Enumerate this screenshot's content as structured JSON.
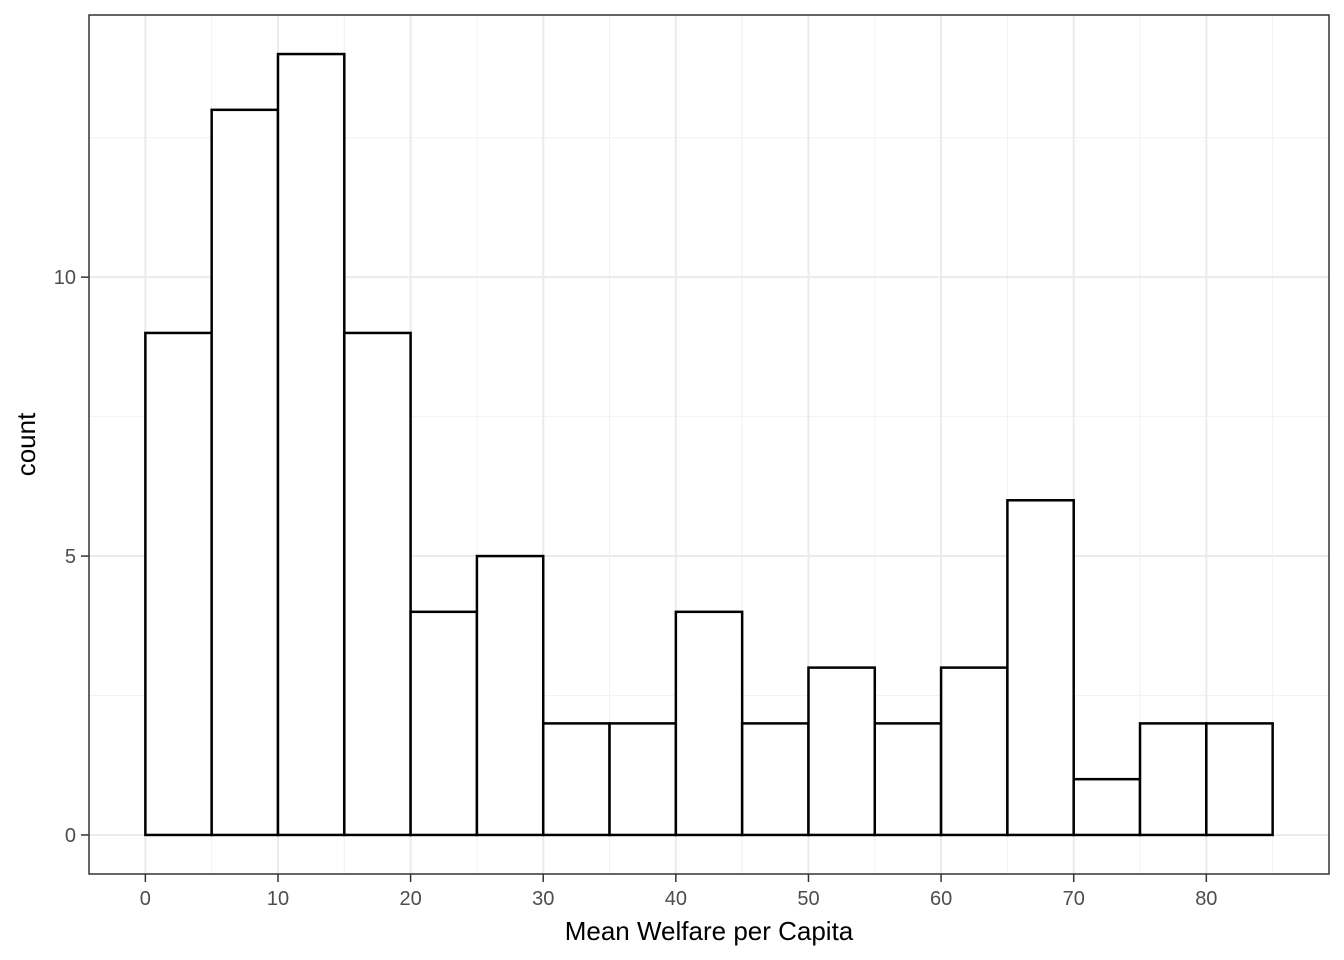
{
  "chart_data": {
    "type": "bar",
    "subtype": "histogram",
    "title": "",
    "xlabel": "Mean Welfare per Capita",
    "ylabel": "count",
    "bin_width": 5,
    "bins": [
      {
        "start": 0,
        "end": 5,
        "count": 9
      },
      {
        "start": 5,
        "end": 10,
        "count": 13
      },
      {
        "start": 10,
        "end": 15,
        "count": 14
      },
      {
        "start": 15,
        "end": 20,
        "count": 9
      },
      {
        "start": 20,
        "end": 25,
        "count": 4
      },
      {
        "start": 25,
        "end": 30,
        "count": 5
      },
      {
        "start": 30,
        "end": 35,
        "count": 2
      },
      {
        "start": 35,
        "end": 40,
        "count": 2
      },
      {
        "start": 40,
        "end": 45,
        "count": 4
      },
      {
        "start": 45,
        "end": 50,
        "count": 2
      },
      {
        "start": 50,
        "end": 55,
        "count": 3
      },
      {
        "start": 55,
        "end": 60,
        "count": 2
      },
      {
        "start": 60,
        "end": 65,
        "count": 3
      },
      {
        "start": 65,
        "end": 70,
        "count": 6
      },
      {
        "start": 70,
        "end": 75,
        "count": 1
      },
      {
        "start": 75,
        "end": 80,
        "count": 2
      },
      {
        "start": 80,
        "end": 85,
        "count": 2
      }
    ],
    "xlim": [
      -4.25,
      89.25
    ],
    "ylim": [
      -0.7,
      14.7
    ],
    "x_ticks": [
      0,
      10,
      20,
      30,
      40,
      50,
      60,
      70,
      80
    ],
    "y_ticks": [
      0,
      5,
      10
    ],
    "grid": true,
    "theme": "bw",
    "colors": {
      "fill": "#ffffff",
      "outline": "#000000",
      "grid": "#ebebeb",
      "border": "#333333"
    }
  }
}
